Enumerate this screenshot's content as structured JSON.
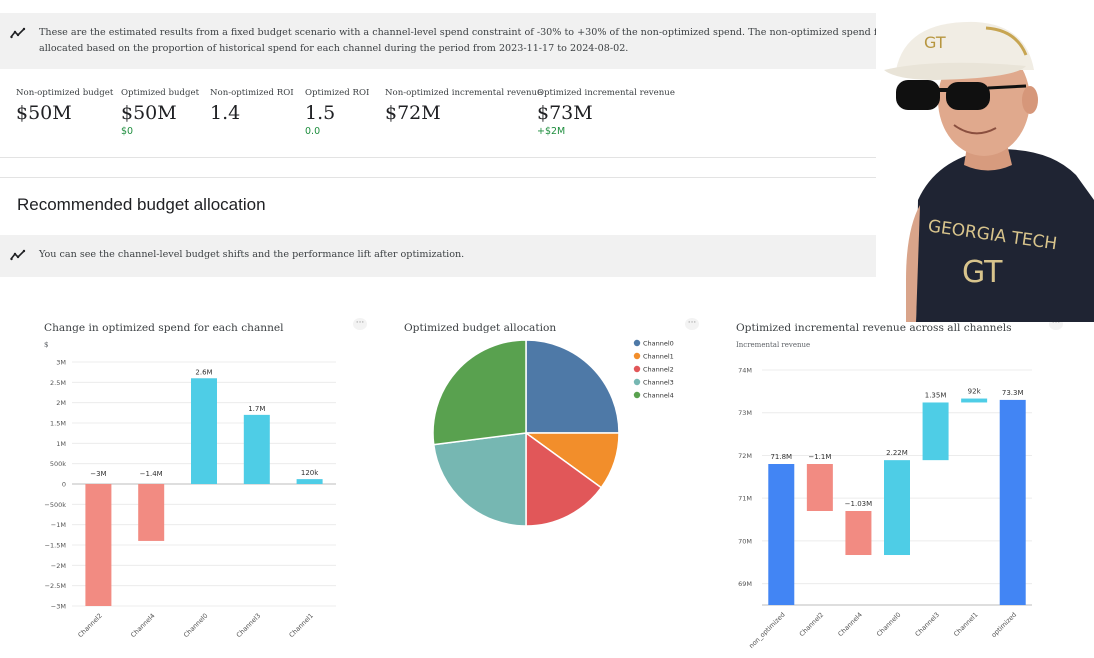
{
  "banner_top": {
    "icon": "trending-icon",
    "text": "These are the estimated results from a fixed budget scenario with a channel-level spend constraint of -30% to +30% of the non-optimized spend. The non-optimized spend for each channel equals the total budget allocated based on the proportion of historical spend for each channel during the period from 2023-11-17 to 2024-08-02."
  },
  "metrics": [
    {
      "label": "Non-optimized budget",
      "value": "$50M",
      "delta": ""
    },
    {
      "label": "Optimized budget",
      "value": "$50M",
      "delta": "$0"
    },
    {
      "label": "Non-optimized ROI",
      "value": "1.4",
      "delta": ""
    },
    {
      "label": "Optimized ROI",
      "value": "1.5",
      "delta": "0.0"
    },
    {
      "label": "Non-optimized incremental revenue",
      "value": "$72M",
      "delta": ""
    },
    {
      "label": "Optimized incremental revenue",
      "value": "$73M",
      "delta": "+$2M"
    }
  ],
  "section_title": "Recommended budget allocation",
  "banner_mid": {
    "icon": "trending-icon",
    "text": "You can see the channel-level budget shifts and the performance lift after optimization."
  },
  "colors": {
    "positive": "#4ecde6",
    "negative": "#f28b82",
    "total": "#4285f4",
    "delta_text": "#1e8e3e"
  },
  "chart_data": [
    {
      "type": "bar",
      "title": "Change in optimized spend for each channel",
      "ylabel": "$",
      "categories": [
        "Channel2",
        "Channel4",
        "Channel0",
        "Channel3",
        "Channel1"
      ],
      "values": [
        -3000000,
        -1400000,
        2600000,
        1700000,
        120000
      ],
      "data_labels": [
        "−3M",
        "−1.4M",
        "2.6M",
        "1.7M",
        "120k"
      ],
      "ylim": [
        -3000000,
        3000000
      ],
      "yticks": [
        3000000,
        2500000,
        2000000,
        1500000,
        1000000,
        500000,
        0,
        -500000,
        -1000000,
        -1500000,
        -2000000,
        -2500000,
        -3000000
      ],
      "ytick_labels": [
        "3M",
        "2.5M",
        "2M",
        "1.5M",
        "1M",
        "500k",
        "0",
        "−500k",
        "−1M",
        "−1.5M",
        "−2M",
        "−2.5M",
        "−3M"
      ],
      "grid": true
    },
    {
      "type": "pie",
      "title": "Optimized budget allocation",
      "labels": [
        "Channel0",
        "Channel1",
        "Channel2",
        "Channel3",
        "Channel4"
      ],
      "values": [
        25,
        10,
        15,
        23,
        27
      ],
      "colors": [
        "#4e79a7",
        "#f28e2b",
        "#e15759",
        "#76b7b2",
        "#59a14f"
      ],
      "legend": "right"
    },
    {
      "type": "bar",
      "subtype": "waterfall",
      "title": "Optimized incremental revenue across all channels",
      "ylabel": "Incremental revenue",
      "categories": [
        "non_optimized",
        "Channel2",
        "Channel4",
        "Channel0",
        "Channel3",
        "Channel1",
        "optimized"
      ],
      "values": [
        71.8,
        -1.1,
        -1.03,
        2.22,
        1.35,
        0.092,
        73.3
      ],
      "data_labels": [
        "71.8M",
        "−1.1M",
        "−1.03M",
        "2.22M",
        "1.35M",
        "92k",
        "73.3M"
      ],
      "ylim": [
        68.5,
        74
      ],
      "yticks": [
        69,
        70,
        71,
        72,
        73,
        74
      ],
      "ytick_labels": [
        "69M",
        "70M",
        "71M",
        "72M",
        "73M",
        "74M"
      ],
      "grid": true
    }
  ]
}
